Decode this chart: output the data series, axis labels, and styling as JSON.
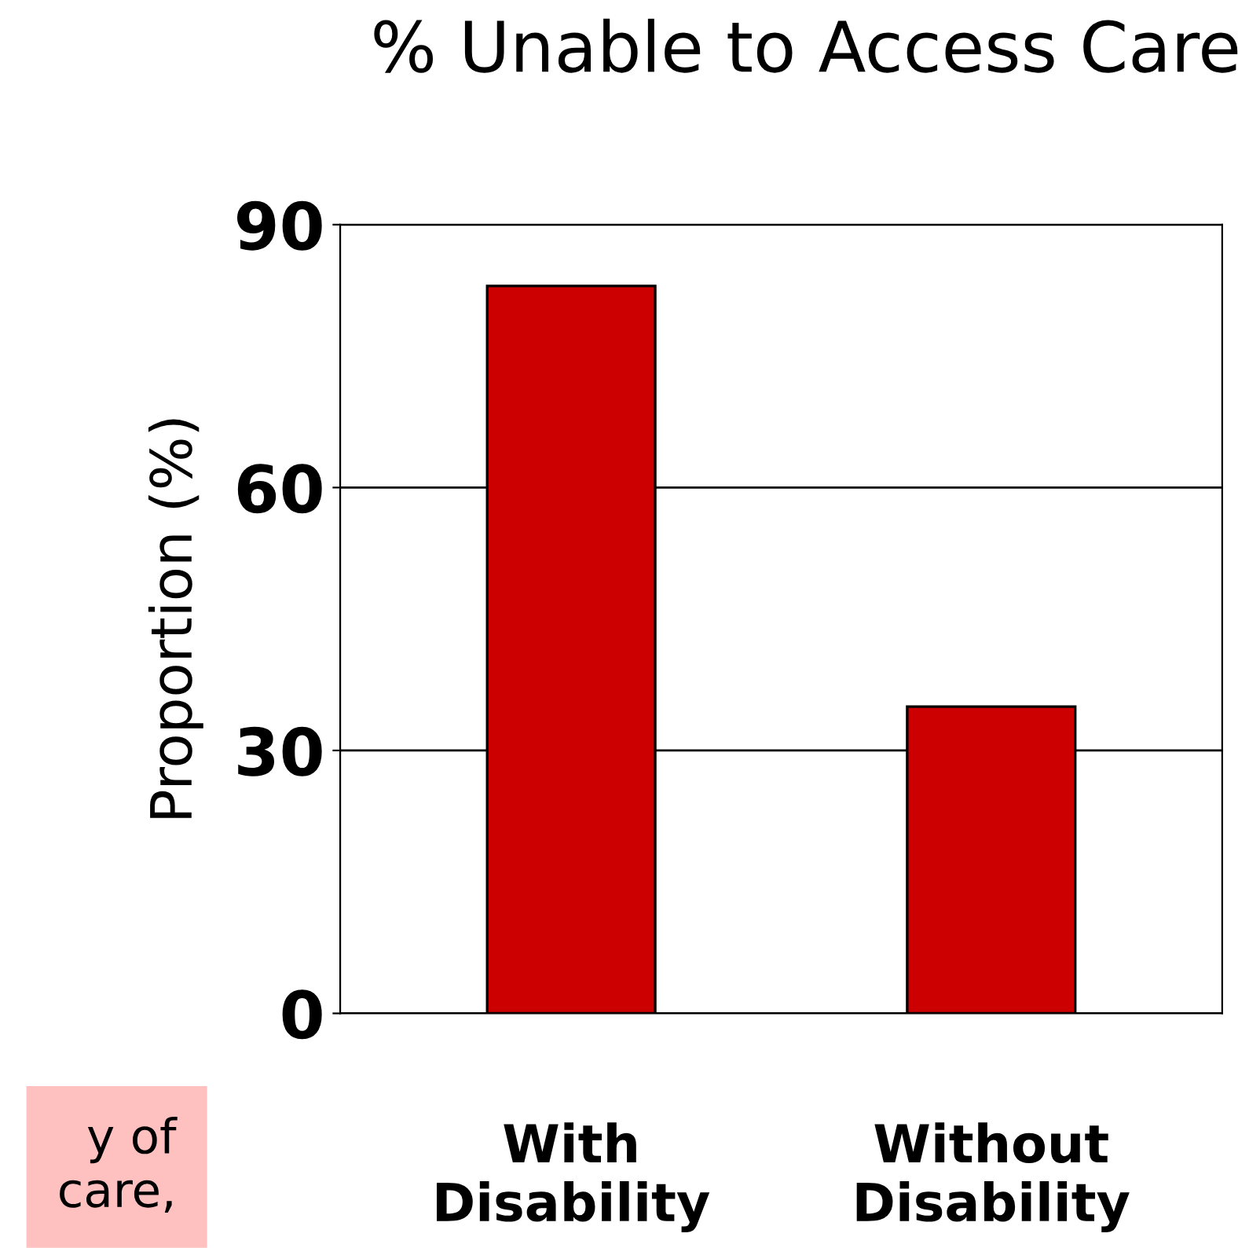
{
  "chart_data": {
    "type": "bar",
    "title": "% Unable to Access Care",
    "ylabel": "Proportion (%)",
    "categories": [
      "With\nDisability",
      "Without\nDisability"
    ],
    "values": [
      83,
      35
    ],
    "color": "#cc0000",
    "ylim": [
      0,
      90
    ],
    "yticks": [
      0,
      30,
      60,
      90
    ],
    "grid": "y",
    "legend": false,
    "annotations": [
      "y of\ncare,"
    ]
  }
}
